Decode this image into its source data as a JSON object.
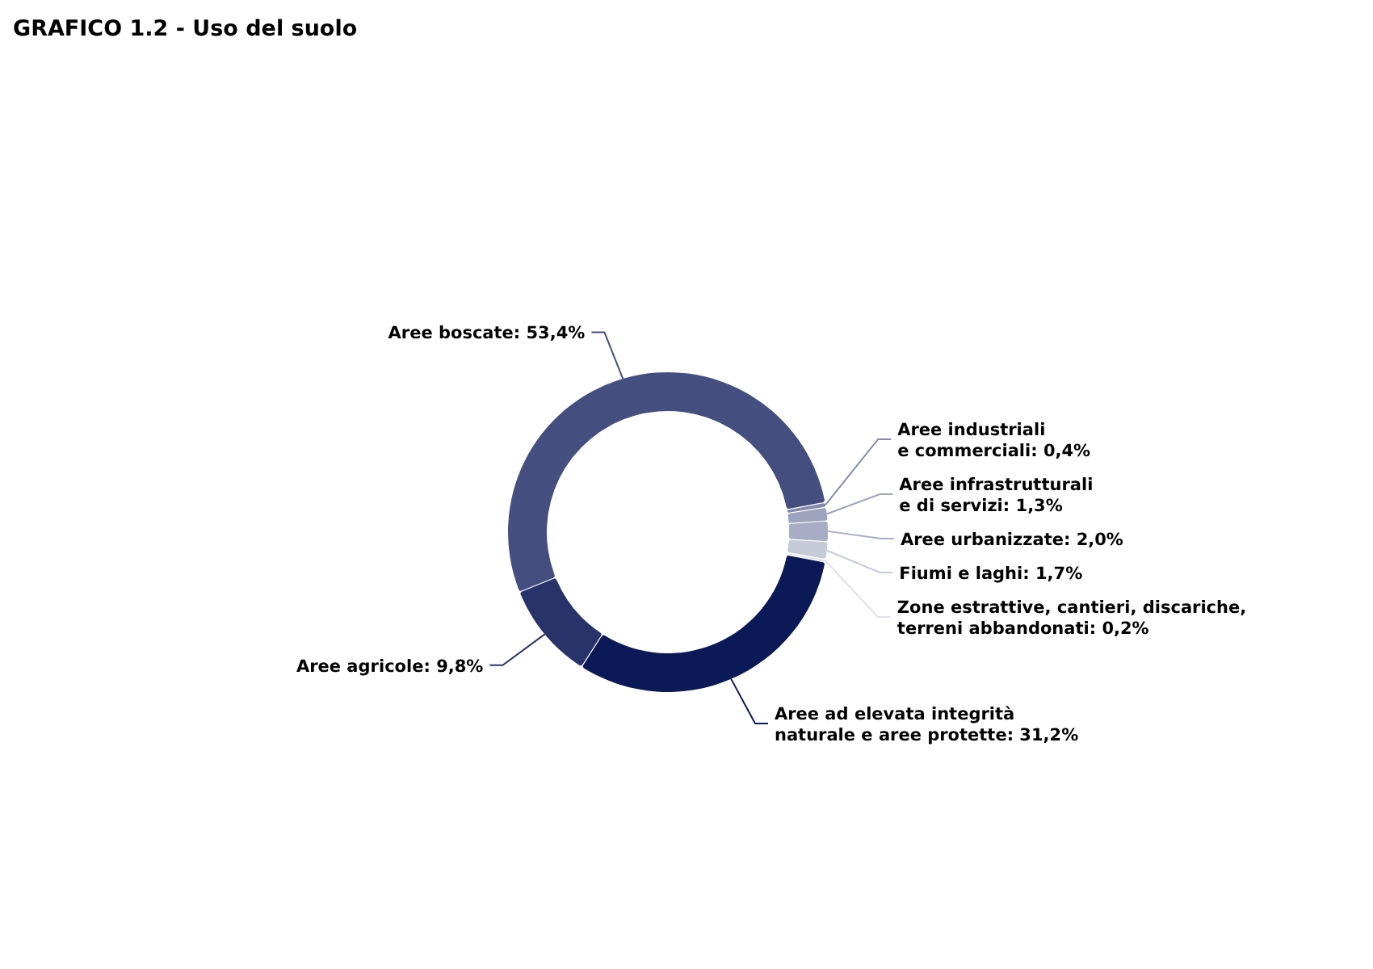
{
  "chart_data": {
    "type": "donut",
    "title": "GRAFICO 1.2 - Uso del suolo",
    "categories": [
      "Aree boscate",
      "Aree industriali\ne commerciali",
      "Aree infrastrutturali\ne di servizi",
      "Aree urbanizzate",
      "Fiumi e laghi",
      "Zone estrattive, cantieri, discariche,\nterreni abbandonati",
      "Aree ad elevata integrità\nnaturale e aree protette",
      "Aree agricole"
    ],
    "values": [
      53.4,
      0.4,
      1.3,
      2.0,
      1.7,
      0.2,
      31.2,
      9.8
    ],
    "colors": [
      "#454f7f",
      "#858aab",
      "#9ea3bd",
      "#a8acc4",
      "#c6c9d6",
      "#e1e3eb",
      "#0c1957",
      "#28336a"
    ],
    "value_labels": [
      "53,4%",
      "0,4%",
      "1,3%",
      "2,0%",
      "1,7%",
      "0,2%",
      "31,2%",
      "9,8%"
    ]
  }
}
